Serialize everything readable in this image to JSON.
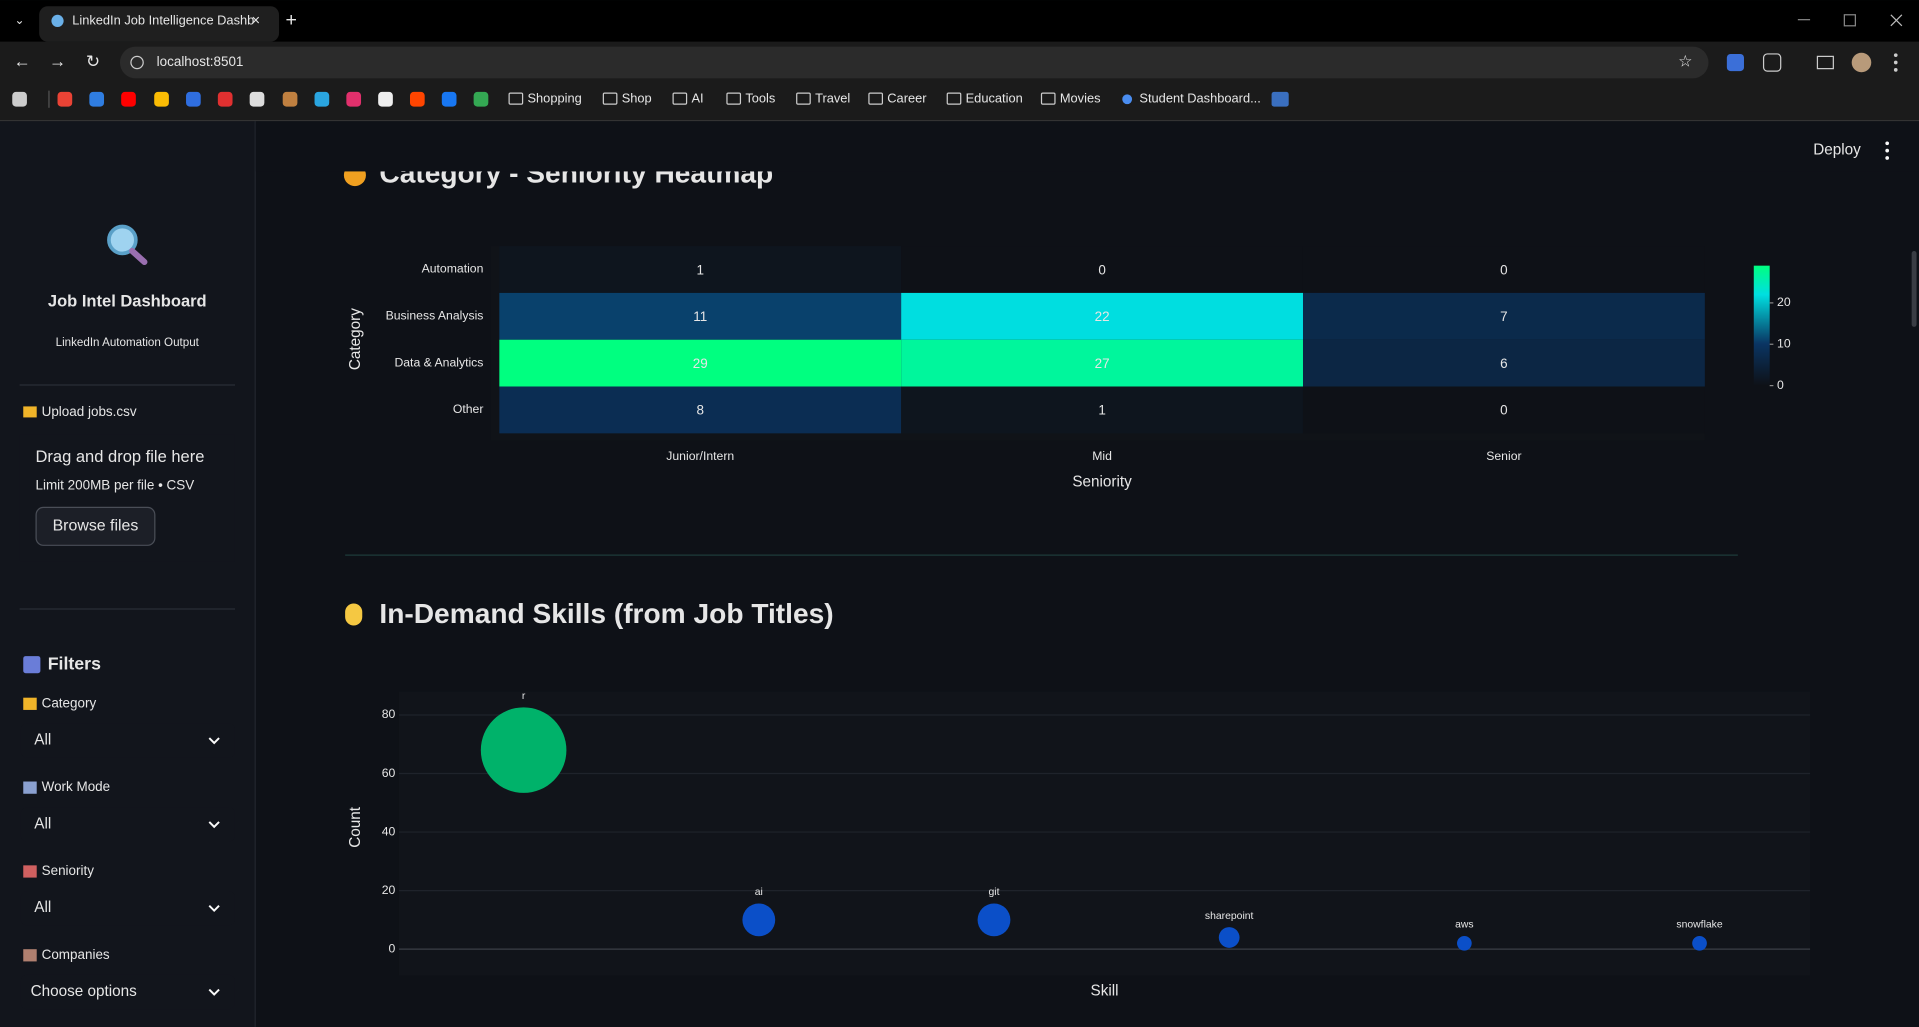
{
  "browser": {
    "tab_title": "LinkedIn Job Intelligence Dashb",
    "url": "localhost:8501",
    "bookmarks": [
      "Shopping",
      "Shop",
      "AI",
      "Tools",
      "Travel",
      "Career",
      "Education",
      "Movies",
      "Student Dashboard..."
    ]
  },
  "header": {
    "deploy": "Deploy"
  },
  "sidebar": {
    "title": "Job Intel Dashboard",
    "subtitle": "LinkedIn Automation Output",
    "upload_label": "Upload jobs.csv",
    "dropzone_title": "Drag and drop file here",
    "dropzone_limit": "Limit 200MB per file • CSV",
    "browse_button": "Browse files",
    "filters_title": "Filters",
    "filters": [
      {
        "label": "Category",
        "value": "All"
      },
      {
        "label": "Work Mode",
        "value": "All"
      },
      {
        "label": "Seniority",
        "value": "All"
      },
      {
        "label": "Companies",
        "value": "Choose options"
      }
    ]
  },
  "heatmap": {
    "title": "Category - Seniority Heatmap",
    "x_label": "Seniority",
    "y_label": "Category",
    "columns": [
      "Junior/Intern",
      "Mid",
      "Senior"
    ],
    "rows": [
      "Automation",
      "Business Analysis",
      "Data & Analytics",
      "Other"
    ],
    "values": [
      [
        1,
        0,
        0
      ],
      [
        11,
        22,
        7
      ],
      [
        29,
        27,
        6
      ],
      [
        8,
        1,
        0
      ]
    ],
    "colorscale": [
      [
        0,
        "#0e1117"
      ],
      [
        0.35,
        "#0a3563"
      ],
      [
        0.76,
        "#00dfe0"
      ],
      [
        1,
        "#00ff80"
      ]
    ],
    "colorbar_ticks": [
      0,
      10,
      20
    ]
  },
  "bubble": {
    "title": "In-Demand Skills (from Job Titles)",
    "type": "scatter",
    "x_label": "Skill",
    "y_label": "Count",
    "categories": [
      "r",
      "ai",
      "git",
      "sharepoint",
      "aws",
      "snowflake"
    ],
    "values": [
      68,
      10,
      10,
      4,
      2,
      2
    ],
    "colors": [
      "#00b26a",
      "#0b4fc8",
      "#0b4fc8",
      "#0b4fc8",
      "#0b4fc8",
      "#0b4fc8"
    ],
    "ylim": [
      -9,
      88
    ],
    "yticks": [
      0,
      20,
      40,
      60,
      80
    ],
    "grid": true
  }
}
